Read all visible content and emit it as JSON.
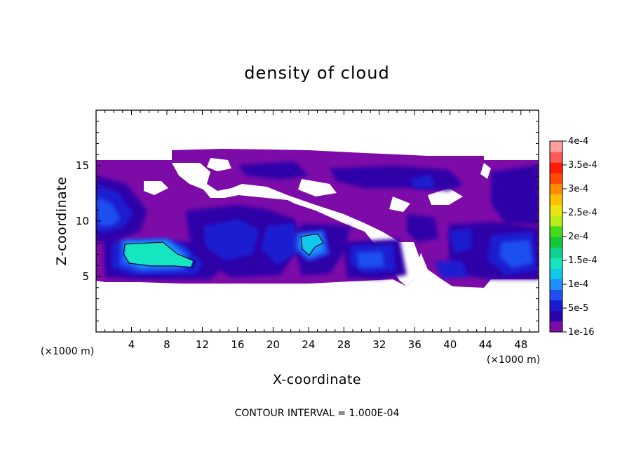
{
  "chart_data": {
    "type": "heatmap",
    "title": "density of cloud",
    "xlabel": "X-coordinate",
    "ylabel": "Z-coordinate",
    "x_unit": "(×1000 m)",
    "xlim": [
      0,
      50
    ],
    "ylim": [
      0,
      20
    ],
    "x_ticks": [
      "4",
      "8",
      "12",
      "16",
      "20",
      "24",
      "28",
      "32",
      "36",
      "40",
      "44",
      "48"
    ],
    "y_ticks": [
      "5",
      "10",
      "15"
    ],
    "colorbar": {
      "labels": [
        "1e-16",
        "5e-5",
        "1e-4",
        "1.5e-4",
        "2e-4",
        "2.5e-4",
        "3e-4",
        "3.5e-4",
        "4e-4"
      ],
      "colors": [
        "#7c0ba8",
        "#2d04a8",
        "#1a1ad0",
        "#1f4fef",
        "#1e8fff",
        "#10c8e8",
        "#16e6c0",
        "#10d090",
        "#14c83a",
        "#44dc1e",
        "#b8ee1a",
        "#ece414",
        "#ffc000",
        "#ff8c00",
        "#ff4a00",
        "#ff1a00",
        "#ff5a5a",
        "#ffa0a0"
      ]
    },
    "note": "CONTOUR INTERVAL = 1.000E-04"
  }
}
